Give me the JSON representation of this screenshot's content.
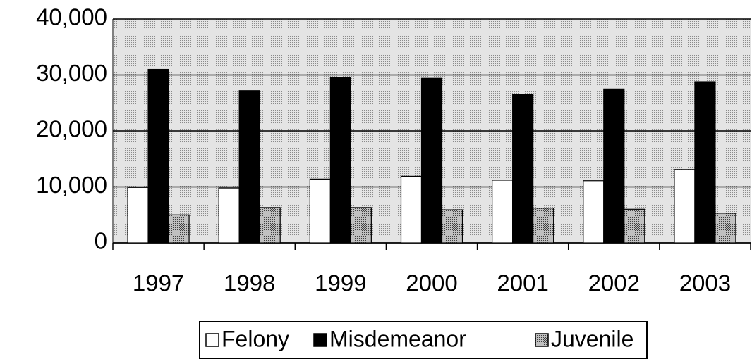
{
  "chart_data": {
    "type": "bar",
    "categories": [
      "1997",
      "1998",
      "1999",
      "2000",
      "2001",
      "2002",
      "2003"
    ],
    "series": [
      {
        "name": "Felony",
        "color": "#ffffff",
        "values": [
          9900,
          9800,
          11400,
          11900,
          11200,
          11100,
          13100
        ]
      },
      {
        "name": "Misdemeanor",
        "color": "#000000",
        "values": [
          31000,
          27200,
          29600,
          29400,
          26500,
          27500,
          28800
        ]
      },
      {
        "name": "Juvenile",
        "color": "#a8a8a8",
        "values": [
          5000,
          6300,
          6300,
          5900,
          6200,
          6000,
          5300
        ]
      }
    ],
    "ylim": [
      0,
      40000
    ],
    "yticks": [
      0,
      {
        "value": 10000,
        "label": "10,000"
      },
      {
        "value": 20000,
        "label": "20,000"
      },
      {
        "value": 30000,
        "label": "30,000"
      },
      {
        "value": 40000,
        "label": "40,000"
      }
    ],
    "grid": true,
    "legend": "bottom"
  }
}
